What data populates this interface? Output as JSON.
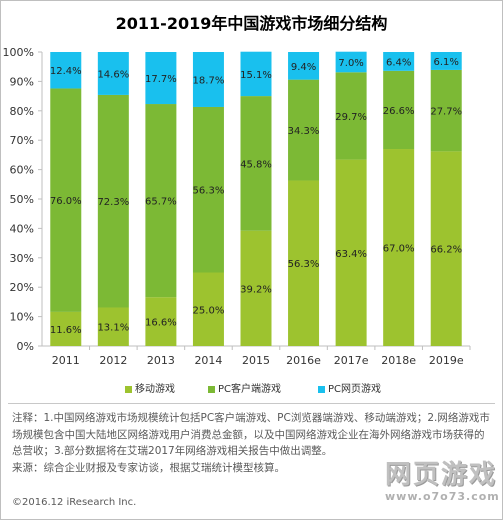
{
  "title": "2011-2019年中国游戏市场细分结构",
  "chart_data": {
    "type": "bar",
    "stacked": true,
    "percent": true,
    "categories": [
      "2011",
      "2012",
      "2013",
      "2014",
      "2015",
      "2016e",
      "2017e",
      "2018e",
      "2019e"
    ],
    "series": [
      {
        "name": "移动游戏",
        "color": "#9dc32f",
        "values": [
          11.6,
          13.1,
          16.6,
          25.0,
          39.2,
          56.3,
          63.4,
          67.0,
          66.2
        ],
        "labels": [
          "11.6%",
          "13.1%",
          "16.6%",
          "25.0%",
          "39.2%",
          "56.3%",
          "63.4%",
          "67.0%",
          "66.2%"
        ]
      },
      {
        "name": "PC客户端游戏",
        "color": "#7cb935",
        "values": [
          76.0,
          72.3,
          65.7,
          56.3,
          45.8,
          34.3,
          29.7,
          26.6,
          27.7
        ],
        "labels": [
          "76.0%",
          "72.3%",
          "65.7%",
          "56.3%",
          "45.8%",
          "34.3%",
          "29.7%",
          "26.6%",
          "27.7%"
        ]
      },
      {
        "name": "PC网页游戏",
        "color": "#19c0ee",
        "values": [
          12.4,
          14.6,
          17.7,
          18.7,
          15.1,
          9.4,
          7.0,
          6.4,
          6.1
        ],
        "labels": [
          "12.4%",
          "14.6%",
          "17.7%",
          "18.7%",
          "15.1%",
          "9.4%",
          "7.0%",
          "6.4%",
          "6.1%"
        ]
      }
    ],
    "ylim": [
      0,
      100
    ],
    "yticks": [
      "0%",
      "10%",
      "20%",
      "30%",
      "40%",
      "50%",
      "60%",
      "70%",
      "80%",
      "90%",
      "100%"
    ],
    "grid": false,
    "legend_position": "bottom"
  },
  "notes": [
    "注释：1.中国网络游戏市场规模统计包括PC客户端游戏、PC浏览器端游戏、移动端游戏；2.网络游戏市场规模包含中国大陆地区网络游戏用户消费总金额，以及中国网络游戏企业在海外网络游戏市场获得的总营收；3.部分数据将在艾瑞2017年网络游戏相关报告中做出调整。",
    "来源：综合企业财报及专家访谈，根据艾瑞统计模型核算。"
  ],
  "copyright": "©2016.12 iResearch Inc.",
  "watermark": {
    "main": "网页游戏",
    "sub": "www.o7o73.com"
  }
}
